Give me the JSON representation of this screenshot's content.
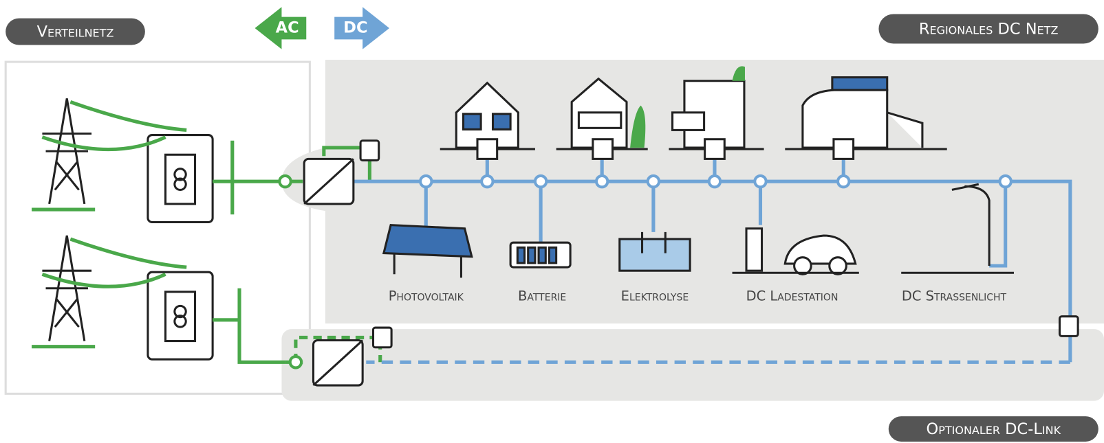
{
  "labels": {
    "distribution_grid": "Verteilnetz",
    "ac": "AC",
    "dc": "DC",
    "regional_grid": "Regionales DC Netz",
    "optional_link": "Optionaler DC-Link"
  },
  "components": [
    "Photovoltaik",
    "Batterie",
    "Elektrolyse",
    "DC Ladestation",
    "DC Strassenlicht"
  ]
}
